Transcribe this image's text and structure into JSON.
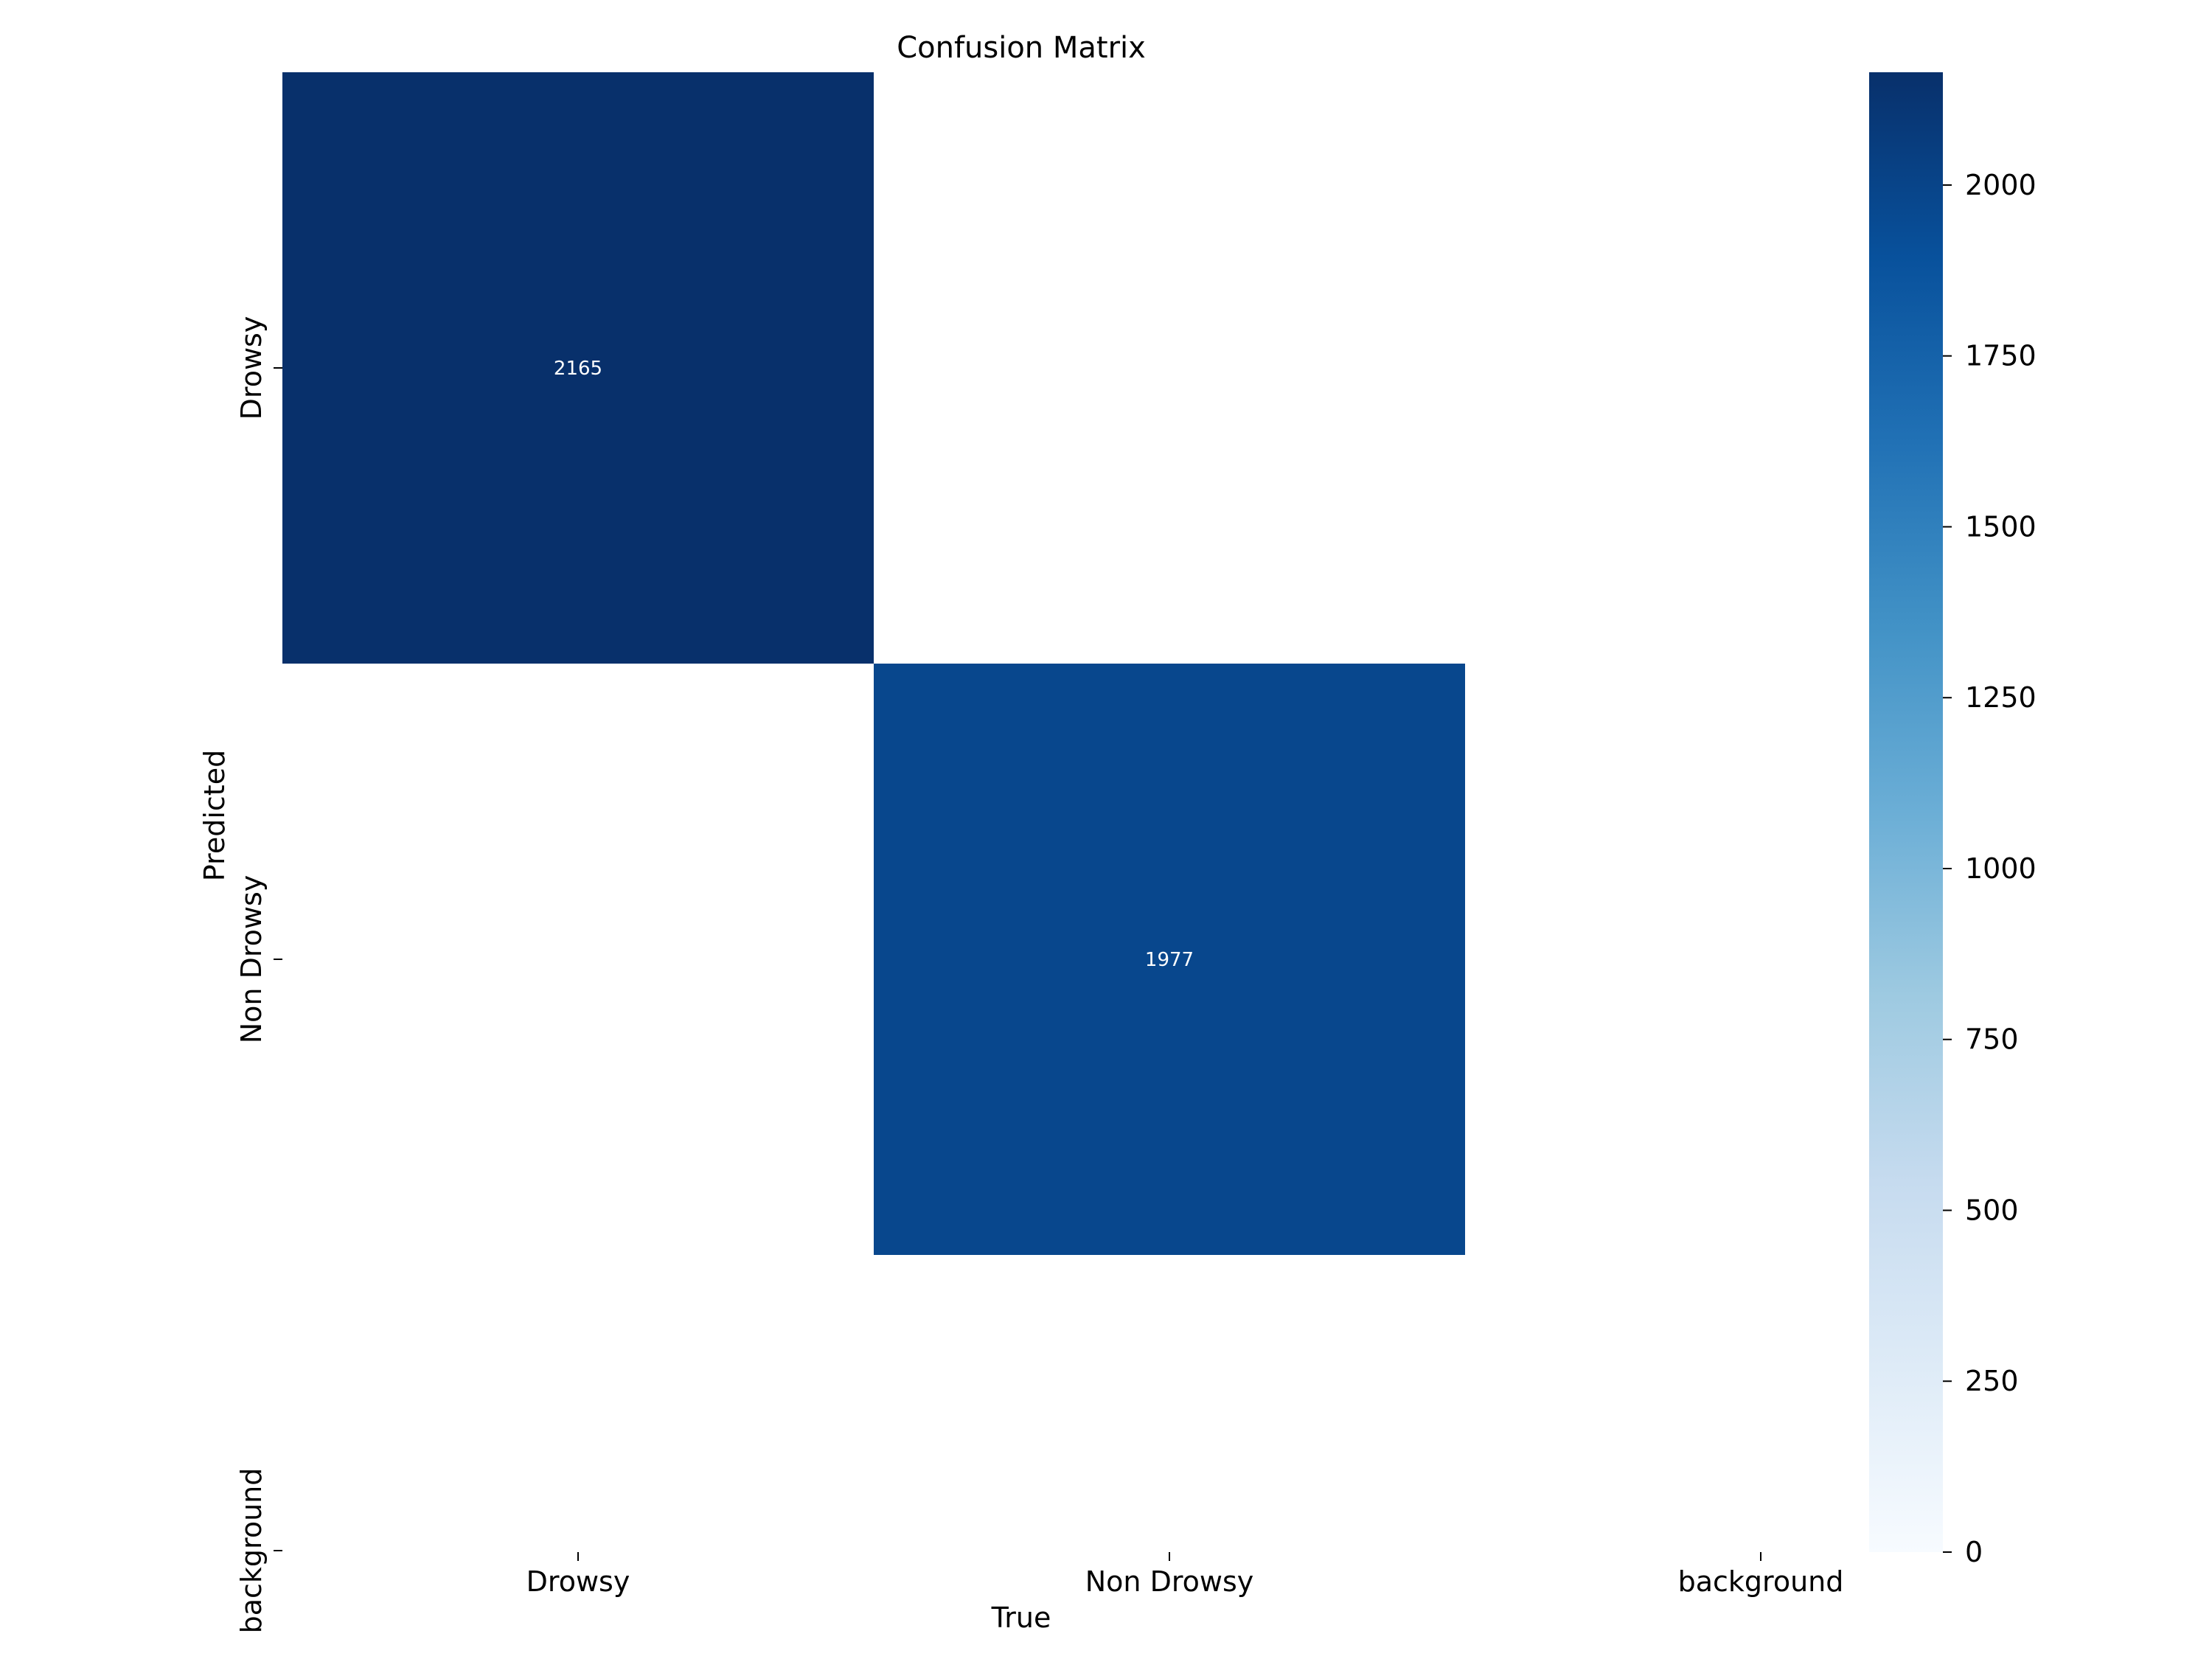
{
  "chart_data": {
    "type": "heatmap",
    "title": "Confusion Matrix",
    "xlabel": "True",
    "ylabel": "Predicted",
    "x_categories": [
      "Drowsy",
      "Non Drowsy",
      "background"
    ],
    "y_categories": [
      "Drowsy",
      "Non Drowsy",
      "background"
    ],
    "values": [
      [
        2165,
        null,
        null
      ],
      [
        null,
        1977,
        null
      ],
      [
        null,
        null,
        null
      ]
    ],
    "annotations": [
      {
        "row": 0,
        "col": 0,
        "text": "2165"
      },
      {
        "row": 1,
        "col": 1,
        "text": "1977"
      }
    ],
    "colorbar": {
      "colormap": "Blues",
      "vmin": 0,
      "vmax": 2165,
      "ticks": [
        0,
        250,
        500,
        750,
        1000,
        1250,
        1500,
        1750,
        2000
      ],
      "tick_labels": [
        "0",
        "250",
        "500",
        "750",
        "1000",
        "1250",
        "1500",
        "1750",
        "2000"
      ]
    },
    "grid": false,
    "legend": "colorbar-right"
  }
}
